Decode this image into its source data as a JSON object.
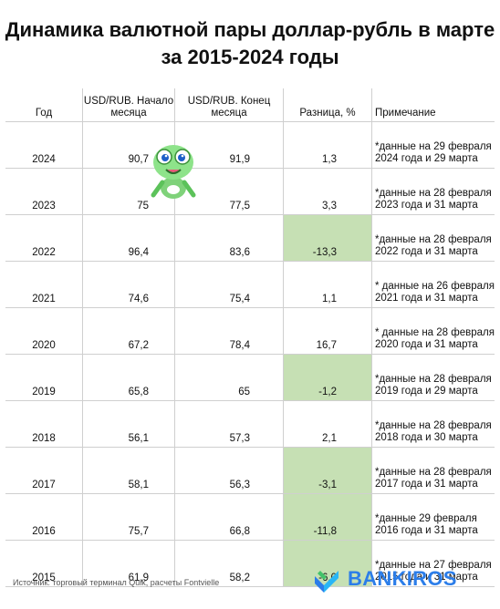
{
  "title": "Динамика валютной пары доллар-рубль в марте за 2015-2024 годы",
  "table": {
    "headers": {
      "year": "Год",
      "start": "USD/RUB. Начало месяца",
      "end": "USD/RUB. Конец месяца",
      "diff": "Разница, %",
      "note": "Примечание"
    },
    "rows": [
      {
        "year": "2024",
        "start": "90,7",
        "end": "91,9",
        "diff": "1,3",
        "note": "*данные на 29 февраля 2024 года и 29 марта",
        "negative": false
      },
      {
        "year": "2023",
        "start": "75",
        "end": "77,5",
        "diff": "3,3",
        "note": "*данные на 28 февраля 2023 года и 31 марта",
        "negative": false
      },
      {
        "year": "2022",
        "start": "96,4",
        "end": "83,6",
        "diff": "-13,3",
        "note": "*данные на 28 февраля 2022 года и 31 марта",
        "negative": true
      },
      {
        "year": "2021",
        "start": "74,6",
        "end": "75,4",
        "diff": "1,1",
        "note": "* данные на 26 февраля 2021 года и 31 марта",
        "negative": false
      },
      {
        "year": "2020",
        "start": "67,2",
        "end": "78,4",
        "diff": "16,7",
        "note": "* данные на 28 февраля 2020 года и 31 марта",
        "negative": false
      },
      {
        "year": "2019",
        "start": "65,8",
        "end": "65",
        "diff": "-1,2",
        "note": "*данные на 28 февраля 2019 года и 29 марта",
        "negative": true
      },
      {
        "year": "2018",
        "start": "56,1",
        "end": "57,3",
        "diff": "2,1",
        "note": "*данные на 28 февраля 2018 года и 30 марта",
        "negative": false
      },
      {
        "year": "2017",
        "start": "58,1",
        "end": "56,3",
        "diff": "-3,1",
        "note": "*данные на 28 февраля 2017 года и 31 марта",
        "negative": true
      },
      {
        "year": "2016",
        "start": "75,7",
        "end": "66,8",
        "diff": "-11,8",
        "note": "*данные 29 февраля 2016 года и 31 марта",
        "negative": true
      },
      {
        "year": "2015",
        "start": "61,9",
        "end": "58,2",
        "diff": "-6,0",
        "note": "*данные на 27 февраля 2015 года и 31 марта",
        "negative": true
      }
    ]
  },
  "source": "Источник: торговый терминал Quik, расчеты Fontvielle",
  "brand": {
    "name": "BANKIROS",
    "color": "#2b7de9"
  },
  "colors": {
    "negative_fill": "#c6e0b4",
    "grid": "#cfcfcf"
  },
  "mascot_icon": "green-frog-mascot-icon"
}
